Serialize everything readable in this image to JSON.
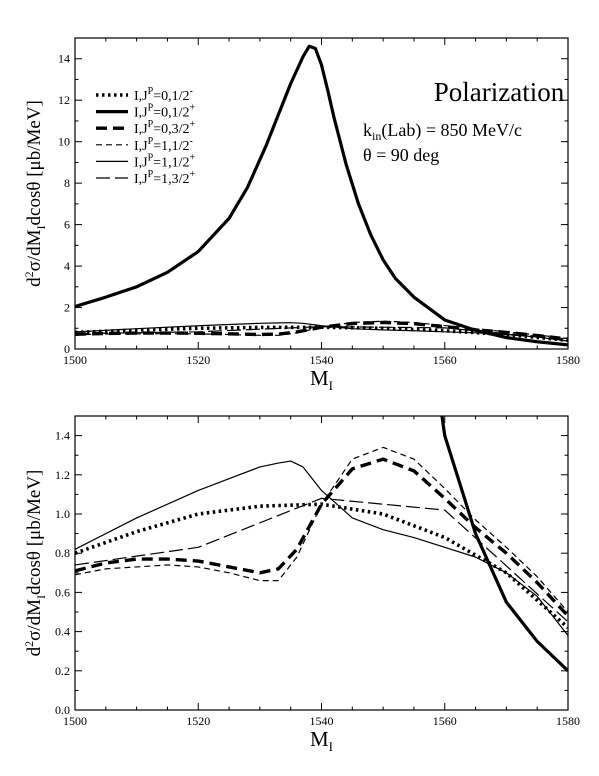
{
  "chart_data": [
    {
      "type": "line",
      "title": "Polarization",
      "annotations": [
        "k_in(Lab) = 850 MeV/c",
        "θ = 90 deg"
      ],
      "xlabel": "M_I",
      "ylabel": "d²σ/dM_I dcosθ [μb/MeV]",
      "xlim": [
        1500,
        1580
      ],
      "ylim": [
        0,
        15
      ],
      "xticks": [
        "1500",
        "1520",
        "1540",
        "1560",
        "1580"
      ],
      "yticks": [
        "0",
        "2",
        "4",
        "6",
        "8",
        "10",
        "12",
        "14"
      ],
      "legend_position": "top-left",
      "series": [
        {
          "name": "I,J^P=0,1/2^-",
          "style": "dotted-thick",
          "x": [
            1500,
            1510,
            1520,
            1530,
            1540,
            1550,
            1560,
            1570,
            1580
          ],
          "y": [
            0.8,
            0.91,
            1.0,
            1.04,
            1.05,
            1.0,
            0.88,
            0.7,
            0.42
          ]
        },
        {
          "name": "I,J^P=0,1/2^+",
          "style": "solid-thick",
          "x": [
            1500,
            1505,
            1510,
            1515,
            1520,
            1525,
            1528,
            1531,
            1533,
            1535,
            1537,
            1538,
            1539,
            1540,
            1541,
            1542,
            1544,
            1546,
            1548,
            1550,
            1552,
            1555,
            1560,
            1565,
            1570,
            1575,
            1580
          ],
          "y": [
            2.05,
            2.5,
            3.0,
            3.7,
            4.7,
            6.3,
            7.8,
            9.8,
            11.3,
            12.8,
            14.1,
            14.6,
            14.5,
            13.7,
            12.5,
            11.2,
            8.9,
            7.0,
            5.5,
            4.3,
            3.4,
            2.5,
            1.4,
            0.9,
            0.55,
            0.35,
            0.2
          ]
        },
        {
          "name": "I,J^P=0,3/2^+",
          "style": "dashed-thick",
          "x": [
            1500,
            1505,
            1510,
            1515,
            1520,
            1525,
            1530,
            1533,
            1536,
            1540,
            1545,
            1550,
            1555,
            1560,
            1565,
            1570,
            1575,
            1580
          ],
          "y": [
            0.71,
            0.75,
            0.77,
            0.77,
            0.76,
            0.73,
            0.7,
            0.72,
            0.82,
            1.05,
            1.23,
            1.28,
            1.22,
            1.08,
            0.93,
            0.8,
            0.65,
            0.48
          ]
        },
        {
          "name": "I,J^P=1,1/2^-",
          "style": "dashed-thin",
          "x": [
            1500,
            1505,
            1510,
            1515,
            1520,
            1525,
            1530,
            1533,
            1536,
            1540,
            1545,
            1550,
            1555,
            1560,
            1565,
            1570,
            1575,
            1580
          ],
          "y": [
            0.69,
            0.72,
            0.73,
            0.74,
            0.73,
            0.7,
            0.66,
            0.66,
            0.78,
            1.05,
            1.28,
            1.34,
            1.28,
            1.13,
            0.97,
            0.83,
            0.68,
            0.5
          ]
        },
        {
          "name": "I,J^P=1,1/2^+",
          "style": "solid-thin",
          "x": [
            1500,
            1510,
            1520,
            1525,
            1530,
            1533,
            1535,
            1537,
            1540,
            1545,
            1550,
            1555,
            1560,
            1565,
            1570,
            1575,
            1580
          ],
          "y": [
            0.82,
            0.98,
            1.12,
            1.18,
            1.24,
            1.26,
            1.27,
            1.24,
            1.12,
            0.98,
            0.92,
            0.88,
            0.83,
            0.78,
            0.7,
            0.58,
            0.38
          ]
        },
        {
          "name": "I,J^P=1,3/2^+",
          "style": "longdash-thin",
          "x": [
            1500,
            1520,
            1540,
            1560,
            1580
          ],
          "y": [
            0.74,
            0.83,
            1.08,
            1.02,
            0.45
          ]
        }
      ]
    },
    {
      "type": "line",
      "title": "",
      "xlabel": "M_I",
      "ylabel": "d²σ/dM_I dcosθ [μb/MeV]",
      "xlim": [
        1500,
        1580
      ],
      "ylim": [
        0,
        1.5
      ],
      "xticks": [
        "1500",
        "1520",
        "1540",
        "1560",
        "1580"
      ],
      "yticks": [
        "0.0",
        "0.2",
        "0.4",
        "0.6",
        "0.8",
        "1.0",
        "1.2",
        "1.4"
      ],
      "series_ref": "same series as the first panel, zoomed to y ≤ 1.5"
    }
  ]
}
